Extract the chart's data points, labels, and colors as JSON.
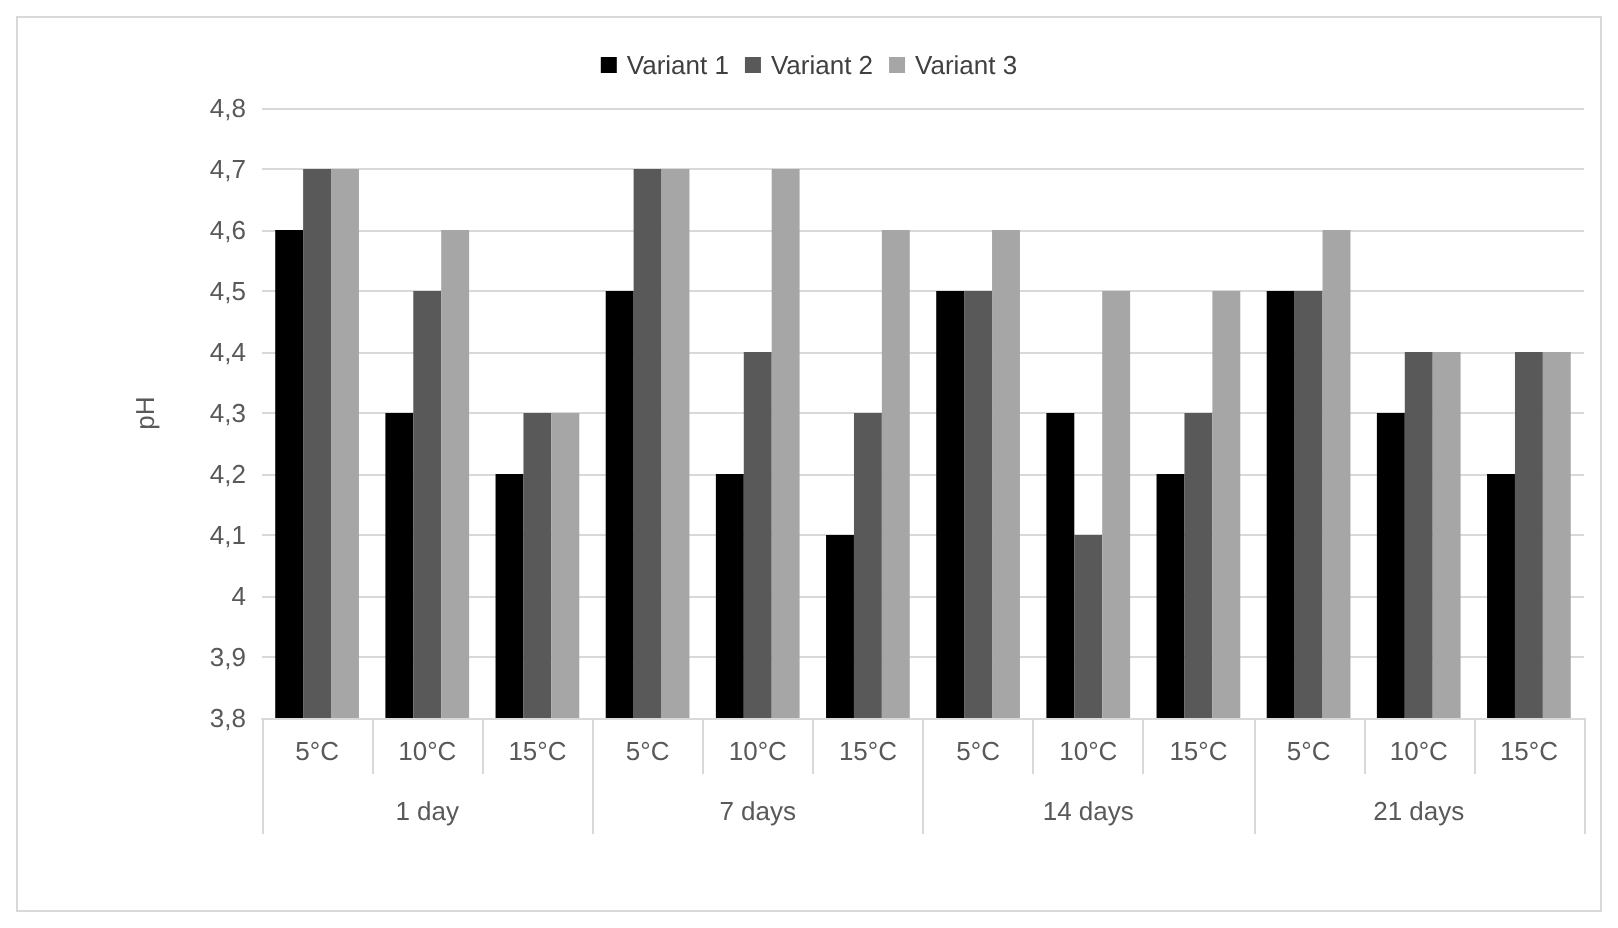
{
  "chart_data": {
    "type": "bar",
    "ylabel": "pH",
    "categories": [
      "5°C",
      "10°C",
      "15°C",
      "5°C",
      "10°C",
      "15°C",
      "5°C",
      "10°C",
      "15°C",
      "5°C",
      "10°C",
      "15°C"
    ],
    "annotations": [
      "1 day",
      "7 days",
      "14 days",
      "21 days"
    ],
    "series": [
      {
        "name": "Variant 1",
        "color": "#000000",
        "values": [
          4.6,
          4.3,
          4.2,
          4.5,
          4.2,
          4.1,
          4.5,
          4.3,
          4.2,
          4.5,
          4.3,
          4.2
        ]
      },
      {
        "name": "Variant 2",
        "color": "#595959",
        "values": [
          4.7,
          4.5,
          4.3,
          4.7,
          4.4,
          4.3,
          4.5,
          4.1,
          4.3,
          4.5,
          4.4,
          4.4
        ]
      },
      {
        "name": "Variant 3",
        "color": "#a6a6a6",
        "values": [
          4.7,
          4.6,
          4.3,
          4.7,
          4.7,
          4.6,
          4.6,
          4.5,
          4.5,
          4.6,
          4.4,
          4.4
        ]
      }
    ],
    "ylim": [
      3.8,
      4.8
    ],
    "yticks": [
      {
        "value": 3.8,
        "label": "3,8"
      },
      {
        "value": 3.9,
        "label": "3,9"
      },
      {
        "value": 4,
        "label": "4"
      },
      {
        "value": 4.1,
        "label": "4,1"
      },
      {
        "value": 4.2,
        "label": "4,2"
      },
      {
        "value": 4.3,
        "label": "4,3"
      },
      {
        "value": 4.4,
        "label": "4,4"
      },
      {
        "value": 4.5,
        "label": "4,5"
      },
      {
        "value": 4.6,
        "label": "4,6"
      },
      {
        "value": 4.7,
        "label": "4,7"
      },
      {
        "value": 4.8,
        "label": "4,8"
      }
    ],
    "grid": true,
    "legend": "top"
  }
}
